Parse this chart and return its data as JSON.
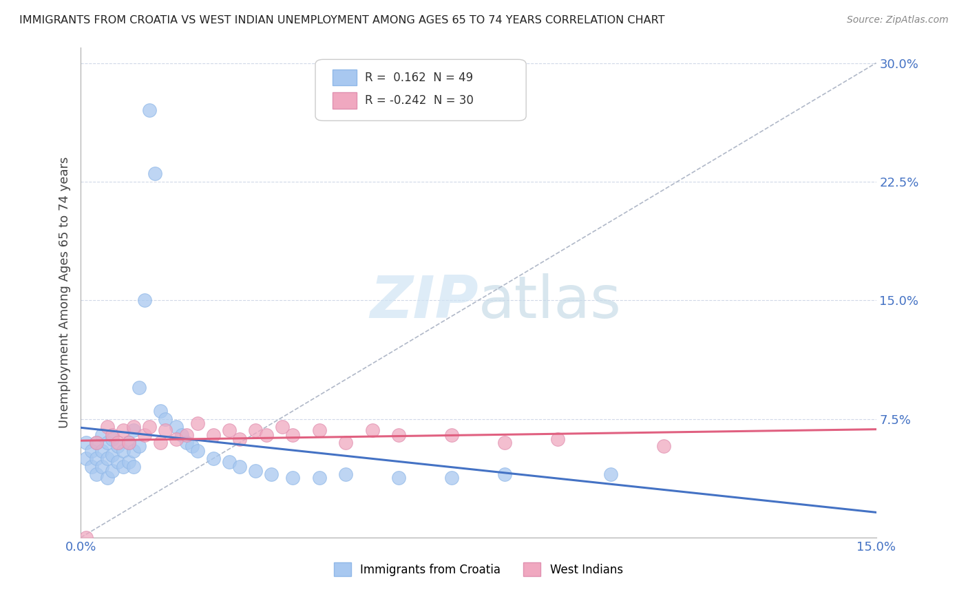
{
  "title": "IMMIGRANTS FROM CROATIA VS WEST INDIAN UNEMPLOYMENT AMONG AGES 65 TO 74 YEARS CORRELATION CHART",
  "source": "Source: ZipAtlas.com",
  "ylabel": "Unemployment Among Ages 65 to 74 years",
  "xlim": [
    0.0,
    0.15
  ],
  "ylim": [
    0.0,
    0.31
  ],
  "xticks": [
    0.0,
    0.025,
    0.05,
    0.075,
    0.1,
    0.125,
    0.15
  ],
  "xtick_labels": [
    "0.0%",
    "",
    "",
    "",
    "",
    "",
    "15.0%"
  ],
  "yticks": [
    0.0,
    0.075,
    0.15,
    0.225,
    0.3
  ],
  "ytick_labels": [
    "",
    "7.5%",
    "15.0%",
    "22.5%",
    "30.0%"
  ],
  "legend_r_croatia": "0.162",
  "legend_n_croatia": "49",
  "legend_r_west": "-0.242",
  "legend_n_west": "30",
  "color_croatia": "#a8c8f0",
  "color_west": "#f0a8c0",
  "color_line_croatia": "#4472c4",
  "color_line_west": "#e06080",
  "background_color": "#ffffff",
  "grid_color": "#d0d8e8",
  "croatia_x": [
    0.001,
    0.001,
    0.002,
    0.002,
    0.003,
    0.003,
    0.003,
    0.004,
    0.004,
    0.004,
    0.005,
    0.005,
    0.005,
    0.006,
    0.006,
    0.006,
    0.007,
    0.007,
    0.008,
    0.008,
    0.009,
    0.009,
    0.01,
    0.01,
    0.01,
    0.011,
    0.011,
    0.012,
    0.013,
    0.014,
    0.015,
    0.016,
    0.018,
    0.019,
    0.02,
    0.021,
    0.022,
    0.025,
    0.028,
    0.03,
    0.033,
    0.036,
    0.04,
    0.045,
    0.05,
    0.06,
    0.07,
    0.08,
    0.1
  ],
  "croatia_y": [
    0.05,
    0.06,
    0.045,
    0.055,
    0.04,
    0.05,
    0.06,
    0.045,
    0.055,
    0.065,
    0.038,
    0.05,
    0.06,
    0.042,
    0.052,
    0.062,
    0.048,
    0.058,
    0.045,
    0.055,
    0.048,
    0.06,
    0.045,
    0.055,
    0.068,
    0.058,
    0.095,
    0.15,
    0.27,
    0.23,
    0.08,
    0.075,
    0.07,
    0.065,
    0.06,
    0.058,
    0.055,
    0.05,
    0.048,
    0.045,
    0.042,
    0.04,
    0.038,
    0.038,
    0.04,
    0.038,
    0.038,
    0.04,
    0.04
  ],
  "west_x": [
    0.001,
    0.003,
    0.005,
    0.006,
    0.007,
    0.008,
    0.009,
    0.01,
    0.012,
    0.013,
    0.015,
    0.016,
    0.018,
    0.02,
    0.022,
    0.025,
    0.028,
    0.03,
    0.033,
    0.035,
    0.038,
    0.04,
    0.045,
    0.05,
    0.055,
    0.06,
    0.07,
    0.08,
    0.09,
    0.11
  ],
  "west_y": [
    0.0,
    0.06,
    0.07,
    0.065,
    0.06,
    0.068,
    0.06,
    0.07,
    0.065,
    0.07,
    0.06,
    0.068,
    0.062,
    0.065,
    0.072,
    0.065,
    0.068,
    0.062,
    0.068,
    0.065,
    0.07,
    0.065,
    0.068,
    0.06,
    0.068,
    0.065,
    0.065,
    0.06,
    0.062,
    0.058
  ]
}
